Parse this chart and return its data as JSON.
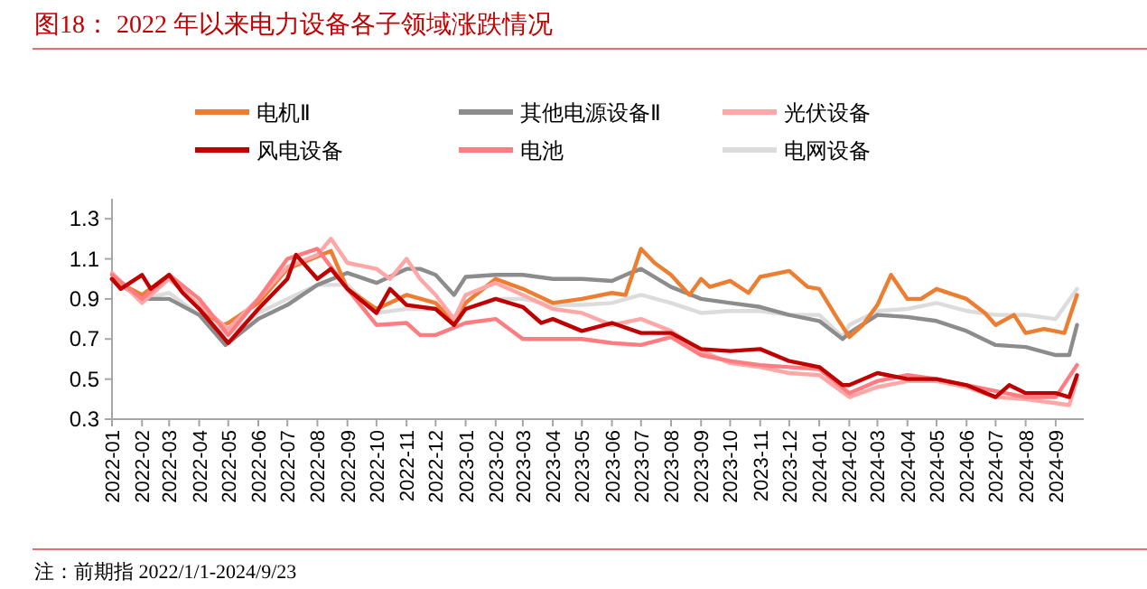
{
  "chart_data": {
    "type": "line",
    "title": "图18： 2022 年以来电力设备各子领域涨跌情况",
    "annotations": [
      "注：前期指 2022/1/1-2024/9/23"
    ],
    "legend": "top",
    "grid": false,
    "marker": "none",
    "line_style": "solid",
    "xlim": [
      "2022-01-01",
      "2024-09-30"
    ],
    "xticks": [
      "2022-01",
      "2022-02",
      "2022-03",
      "2022-04",
      "2022-05",
      "2022-06",
      "2022-07",
      "2022-08",
      "2022-09",
      "2022-10",
      "2022-11",
      "2022-12",
      "2023-01",
      "2023-02",
      "2023-03",
      "2023-04",
      "2023-05",
      "2023-06",
      "2023-07",
      "2023-08",
      "2023-09",
      "2023-10",
      "2023-11",
      "2023-12",
      "2024-01",
      "2024-02",
      "2024-03",
      "2024-04",
      "2024-05",
      "2024-06",
      "2024-07",
      "2024-08",
      "2024-09"
    ],
    "ylim": [
      0.3,
      1.4
    ],
    "yticks": [
      0.3,
      0.5,
      0.7,
      0.9,
      1.1,
      1.3
    ],
    "series": [
      {
        "name": "电网设备",
        "color": "#dcdcdc",
        "x": [
          "2022-01-01",
          "2022-02-01",
          "2022-03-01",
          "2022-04-01",
          "2022-05-01",
          "2022-06-01",
          "2022-07-01",
          "2022-08-01",
          "2022-09-01",
          "2022-10-01",
          "2022-11-01",
          "2022-12-01",
          "2022-12-20",
          "2023-01-01",
          "2023-02-01",
          "2023-03-01",
          "2023-04-01",
          "2023-05-01",
          "2023-06-01",
          "2023-07-01",
          "2023-08-01",
          "2023-09-01",
          "2023-10-01",
          "2023-11-01",
          "2023-12-01",
          "2024-01-01",
          "2024-01-25",
          "2024-02-01",
          "2024-03-01",
          "2024-04-01",
          "2024-05-01",
          "2024-06-01",
          "2024-07-01",
          "2024-08-01",
          "2024-09-01",
          "2024-09-23"
        ],
        "values": [
          1.0,
          0.9,
          0.93,
          0.82,
          0.72,
          0.83,
          0.9,
          0.97,
          0.97,
          0.83,
          0.85,
          0.85,
          0.8,
          0.85,
          0.9,
          0.9,
          0.87,
          0.87,
          0.88,
          0.92,
          0.88,
          0.83,
          0.84,
          0.84,
          0.82,
          0.82,
          0.71,
          0.77,
          0.84,
          0.85,
          0.88,
          0.84,
          0.82,
          0.82,
          0.8,
          0.95
        ]
      },
      {
        "name": "其他电源设备Ⅱ",
        "color": "#8c8c8c",
        "x": [
          "2022-01-01",
          "2022-02-01",
          "2022-03-01",
          "2022-04-01",
          "2022-04-28",
          "2022-06-01",
          "2022-07-01",
          "2022-08-01",
          "2022-09-01",
          "2022-10-01",
          "2022-11-01",
          "2022-11-15",
          "2022-12-01",
          "2022-12-20",
          "2023-01-01",
          "2023-02-01",
          "2023-03-01",
          "2023-04-01",
          "2023-05-01",
          "2023-06-01",
          "2023-06-20",
          "2023-07-01",
          "2023-08-01",
          "2023-09-01",
          "2023-10-01",
          "2023-11-01",
          "2023-12-01",
          "2024-01-01",
          "2024-01-25",
          "2024-02-01",
          "2024-03-01",
          "2024-04-01",
          "2024-05-01",
          "2024-06-01",
          "2024-07-01",
          "2024-08-01",
          "2024-09-01",
          "2024-09-15",
          "2024-09-23"
        ],
        "values": [
          1.0,
          0.9,
          0.9,
          0.82,
          0.67,
          0.8,
          0.87,
          0.97,
          1.03,
          0.98,
          1.05,
          1.05,
          1.02,
          0.92,
          1.01,
          1.02,
          1.02,
          1.0,
          1.0,
          0.99,
          1.03,
          1.05,
          0.96,
          0.9,
          0.88,
          0.86,
          0.82,
          0.79,
          0.7,
          0.73,
          0.82,
          0.81,
          0.79,
          0.74,
          0.67,
          0.66,
          0.62,
          0.62,
          0.77
        ]
      },
      {
        "name": "电机Ⅱ",
        "color": "#ed7d31",
        "x": [
          "2022-01-01",
          "2022-02-01",
          "2022-03-01",
          "2022-04-01",
          "2022-04-25",
          "2022-05-01",
          "2022-06-01",
          "2022-07-01",
          "2022-08-15",
          "2022-09-01",
          "2022-10-01",
          "2022-10-15",
          "2022-11-01",
          "2022-12-01",
          "2022-12-20",
          "2023-01-01",
          "2023-02-01",
          "2023-03-01",
          "2023-04-01",
          "2023-05-01",
          "2023-06-01",
          "2023-06-15",
          "2023-07-01",
          "2023-07-15",
          "2023-08-01",
          "2023-08-20",
          "2023-09-01",
          "2023-09-10",
          "2023-10-01",
          "2023-10-20",
          "2023-11-01",
          "2023-12-01",
          "2023-12-20",
          "2024-01-01",
          "2024-01-20",
          "2024-02-01",
          "2024-02-15",
          "2024-03-01",
          "2024-03-15",
          "2024-04-01",
          "2024-04-15",
          "2024-05-01",
          "2024-06-01",
          "2024-06-20",
          "2024-07-01",
          "2024-07-20",
          "2024-08-01",
          "2024-08-20",
          "2024-09-10",
          "2024-09-23"
        ],
        "values": [
          1.0,
          0.92,
          1.02,
          0.85,
          0.77,
          0.78,
          0.88,
          1.05,
          1.14,
          0.95,
          0.85,
          0.88,
          0.92,
          0.88,
          0.78,
          0.88,
          1.0,
          0.95,
          0.88,
          0.9,
          0.93,
          0.92,
          1.15,
          1.08,
          1.02,
          0.92,
          1.0,
          0.96,
          0.99,
          0.93,
          1.01,
          1.04,
          0.96,
          0.95,
          0.8,
          0.71,
          0.77,
          0.87,
          1.02,
          0.9,
          0.9,
          0.95,
          0.9,
          0.83,
          0.77,
          0.82,
          0.73,
          0.75,
          0.73,
          0.92
        ]
      },
      {
        "name": "光伏设备",
        "color": "#ffa6a6",
        "x": [
          "2022-01-01",
          "2022-02-01",
          "2022-03-01",
          "2022-04-01",
          "2022-05-01",
          "2022-06-01",
          "2022-07-01",
          "2022-08-01",
          "2022-08-15",
          "2022-09-01",
          "2022-10-01",
          "2022-10-15",
          "2022-11-01",
          "2022-11-15",
          "2022-12-01",
          "2022-12-20",
          "2023-01-01",
          "2023-02-01",
          "2023-03-01",
          "2023-04-01",
          "2023-05-01",
          "2023-06-01",
          "2023-07-01",
          "2023-08-01",
          "2023-09-01",
          "2023-10-01",
          "2023-11-01",
          "2023-12-01",
          "2024-01-01",
          "2024-02-01",
          "2024-03-01",
          "2024-04-01",
          "2024-05-01",
          "2024-06-01",
          "2024-07-01",
          "2024-08-01",
          "2024-09-01",
          "2024-09-15",
          "2024-09-23"
        ],
        "values": [
          1.03,
          0.88,
          1.0,
          0.87,
          0.75,
          0.9,
          1.06,
          1.12,
          1.2,
          1.08,
          1.05,
          1.0,
          1.1,
          1.0,
          0.92,
          0.8,
          0.92,
          0.98,
          0.92,
          0.85,
          0.83,
          0.77,
          0.8,
          0.74,
          0.64,
          0.58,
          0.56,
          0.53,
          0.52,
          0.41,
          0.46,
          0.49,
          0.49,
          0.46,
          0.41,
          0.4,
          0.38,
          0.37,
          0.5
        ]
      },
      {
        "name": "电池",
        "color": "#ff7c80",
        "x": [
          "2022-01-01",
          "2022-02-01",
          "2022-03-01",
          "2022-04-01",
          "2022-05-01",
          "2022-06-01",
          "2022-07-01",
          "2022-08-01",
          "2022-09-01",
          "2022-10-01",
          "2022-11-01",
          "2022-11-15",
          "2022-12-01",
          "2023-01-01",
          "2023-02-01",
          "2023-03-01",
          "2023-04-01",
          "2023-05-01",
          "2023-06-01",
          "2023-07-01",
          "2023-08-01",
          "2023-09-01",
          "2023-10-01",
          "2023-11-01",
          "2023-12-01",
          "2024-01-01",
          "2024-02-01",
          "2024-03-01",
          "2024-04-01",
          "2024-05-01",
          "2024-06-01",
          "2024-07-01",
          "2024-08-01",
          "2024-09-01",
          "2024-09-23"
        ],
        "values": [
          1.02,
          0.9,
          1.02,
          0.9,
          0.72,
          0.9,
          1.1,
          1.15,
          0.95,
          0.77,
          0.78,
          0.72,
          0.72,
          0.78,
          0.8,
          0.7,
          0.7,
          0.7,
          0.68,
          0.67,
          0.71,
          0.62,
          0.59,
          0.57,
          0.56,
          0.55,
          0.43,
          0.49,
          0.52,
          0.5,
          0.47,
          0.44,
          0.41,
          0.41,
          0.57
        ]
      },
      {
        "name": "风电设备",
        "color": "#c00000",
        "x": [
          "2022-01-01",
          "2022-01-10",
          "2022-02-01",
          "2022-02-10",
          "2022-03-01",
          "2022-03-15",
          "2022-04-01",
          "2022-05-01",
          "2022-06-01",
          "2022-07-01",
          "2022-07-10",
          "2022-08-01",
          "2022-08-15",
          "2022-09-01",
          "2022-10-01",
          "2022-10-15",
          "2022-11-01",
          "2022-12-01",
          "2022-12-20",
          "2023-01-01",
          "2023-02-01",
          "2023-03-01",
          "2023-03-20",
          "2023-04-01",
          "2023-05-01",
          "2023-06-01",
          "2023-07-01",
          "2023-08-01",
          "2023-09-01",
          "2023-10-01",
          "2023-11-01",
          "2023-12-01",
          "2024-01-01",
          "2024-01-25",
          "2024-02-01",
          "2024-03-01",
          "2024-04-01",
          "2024-05-01",
          "2024-06-01",
          "2024-07-01",
          "2024-07-15",
          "2024-08-01",
          "2024-09-01",
          "2024-09-15",
          "2024-09-23"
        ],
        "values": [
          1.0,
          0.95,
          1.02,
          0.95,
          1.02,
          0.93,
          0.85,
          0.68,
          0.85,
          1.0,
          1.12,
          1.0,
          1.05,
          0.95,
          0.83,
          0.95,
          0.87,
          0.85,
          0.77,
          0.85,
          0.9,
          0.86,
          0.78,
          0.8,
          0.74,
          0.78,
          0.73,
          0.73,
          0.65,
          0.64,
          0.65,
          0.59,
          0.56,
          0.47,
          0.47,
          0.53,
          0.5,
          0.5,
          0.47,
          0.41,
          0.47,
          0.43,
          0.43,
          0.41,
          0.52
        ]
      }
    ]
  }
}
